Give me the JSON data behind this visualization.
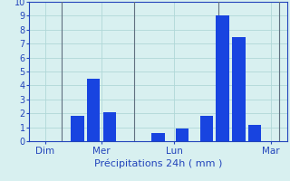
{
  "xlabel": "Précipitations 24h ( mm )",
  "ylim": [
    0,
    10
  ],
  "xlim": [
    0,
    32
  ],
  "background_color": "#d8f0f0",
  "bar_color": "#1844e0",
  "grid_color": "#b0d8d8",
  "axis_label_color": "#2244bb",
  "tick_label_color": "#2244bb",
  "bar_positions": [
    6,
    8,
    10,
    16,
    19,
    22,
    24,
    26,
    28
  ],
  "bar_heights": [
    1.8,
    4.5,
    2.1,
    0.6,
    0.9,
    1.8,
    9.0,
    7.5,
    1.2
  ],
  "bar_width": 1.6,
  "xtick_positions": [
    2,
    9,
    18,
    30
  ],
  "xtick_labels": [
    "Dim",
    "Mer",
    "Lun",
    "Mar"
  ],
  "ytick_positions": [
    0,
    1,
    2,
    3,
    4,
    5,
    6,
    7,
    8,
    9,
    10
  ],
  "ytick_labels": [
    "0",
    "1",
    "2",
    "3",
    "4",
    "5",
    "6",
    "7",
    "8",
    "9",
    "10"
  ],
  "vline_positions": [
    4,
    13,
    23.5,
    31
  ],
  "vline_color": "#607080"
}
